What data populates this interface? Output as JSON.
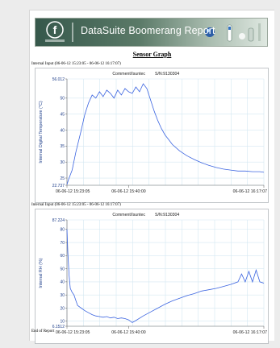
{
  "banner": {
    "title": "DataSuite  Boomerang Report"
  },
  "heading": "Sensor Graph",
  "charts_meta": [
    {
      "range_caption": "Internal Input (06-06-12 15:23:05 - 06-06-12 16:17:07)",
      "comment": "Comment/Isuntec",
      "serial": "S/N:9130304"
    },
    {
      "range_caption": "Internal Input (06-06-12 15:23:05 - 06-06-12 16:17:07)",
      "comment": "Comment/Isuntec",
      "serial": "S/N:9130304"
    }
  ],
  "footer": "End of Report",
  "colors": {
    "line": "#3b64e0",
    "grid": "#d4e8f2",
    "frame": "#9aa0a6",
    "banner_dark": "#3e5f52",
    "banner_light": "#c8d7cb"
  },
  "chart_data": [
    {
      "type": "line",
      "title": "",
      "xlabel": "",
      "ylabel": "Internal Digital Temperature (°C)",
      "ylim": [
        22.737,
        56.012
      ],
      "y_ticks": [
        "56.012",
        "50",
        "45",
        "40",
        "35",
        "30",
        "25",
        "22.737"
      ],
      "x_ticks": [
        "06-06-12 15:23:05",
        "06-06-12 15:40:00",
        "06-06-12 16:17:07"
      ],
      "x": [
        "15:23:05",
        "15:23:30",
        "15:24:30",
        "15:25:30",
        "15:27:00",
        "15:28:00",
        "15:29:00",
        "15:30:00",
        "15:31:00",
        "15:32:00",
        "15:33:00",
        "15:34:00",
        "15:35:00",
        "15:36:00",
        "15:37:00",
        "15:38:00",
        "15:39:00",
        "15:40:00",
        "15:41:00",
        "15:42:00",
        "15:43:00",
        "15:44:00",
        "15:45:00",
        "15:46:00",
        "15:47:00",
        "15:48:00",
        "15:49:00",
        "15:50:00",
        "15:51:00",
        "15:52:00",
        "15:54:00",
        "15:56:00",
        "15:58:00",
        "16:00:00",
        "16:02:00",
        "16:04:00",
        "16:06:00",
        "16:08:00",
        "16:10:00",
        "16:12:00",
        "16:14:00",
        "16:16:00",
        "16:17:07"
      ],
      "series": [
        {
          "values": [
            23.0,
            24.5,
            27.5,
            33.0,
            40.0,
            45.0,
            48.5,
            51.0,
            50.0,
            52.0,
            50.5,
            52.5,
            51.5,
            50.0,
            52.5,
            51.0,
            53.0,
            52.0,
            51.5,
            53.5,
            52.0,
            54.5,
            53.0,
            49.5,
            46.0,
            43.0,
            40.5,
            38.5,
            37.0,
            35.5,
            33.5,
            32.0,
            30.8,
            29.8,
            29.0,
            28.3,
            27.8,
            27.5,
            27.2,
            27.2,
            27.0,
            27.0,
            26.8
          ]
        }
      ]
    },
    {
      "type": "line",
      "title": "",
      "xlabel": "",
      "ylabel": "Internal RH (%)",
      "ylim": [
        6.1512,
        87.224
      ],
      "y_ticks": [
        "87.224",
        "80",
        "70",
        "60",
        "50",
        "40",
        "30",
        "20",
        "10",
        "6.1512"
      ],
      "x_ticks": [
        "06-06-12 15:23:05",
        "06-06-12 15:40:00",
        "06-06-12 16:17:07"
      ],
      "x": [
        "15:23:05",
        "15:23:20",
        "15:23:40",
        "15:24:00",
        "15:24:30",
        "15:25:00",
        "15:25:30",
        "15:26:00",
        "15:27:00",
        "15:28:00",
        "15:29:00",
        "15:30:00",
        "15:31:00",
        "15:32:00",
        "15:33:00",
        "15:34:00",
        "15:35:00",
        "15:36:00",
        "15:37:00",
        "15:38:00",
        "15:39:00",
        "15:40:00",
        "15:41:00",
        "15:42:00",
        "15:44:00",
        "15:46:00",
        "15:48:00",
        "15:50:00",
        "15:52:00",
        "15:54:00",
        "15:56:00",
        "15:58:00",
        "16:00:00",
        "16:02:00",
        "16:04:00",
        "16:06:00",
        "16:08:00",
        "16:10:00",
        "16:11:00",
        "16:12:00",
        "16:13:00",
        "16:14:00",
        "16:15:00",
        "16:16:00",
        "16:17:07"
      ],
      "series": [
        {
          "values": [
            80.0,
            62.0,
            45.0,
            35.0,
            32.0,
            30.0,
            26.0,
            22.0,
            20.0,
            18.0,
            16.5,
            15.0,
            14.0,
            13.5,
            13.0,
            13.5,
            12.5,
            13.0,
            12.0,
            12.5,
            12.0,
            11.0,
            9.0,
            10.5,
            14.0,
            17.0,
            20.0,
            23.0,
            25.5,
            27.5,
            29.5,
            31.0,
            33.0,
            34.0,
            35.0,
            36.5,
            38.0,
            40.0,
            46.0,
            40.0,
            48.0,
            40.0,
            49.0,
            40.0,
            39.0
          ]
        }
      ]
    }
  ]
}
